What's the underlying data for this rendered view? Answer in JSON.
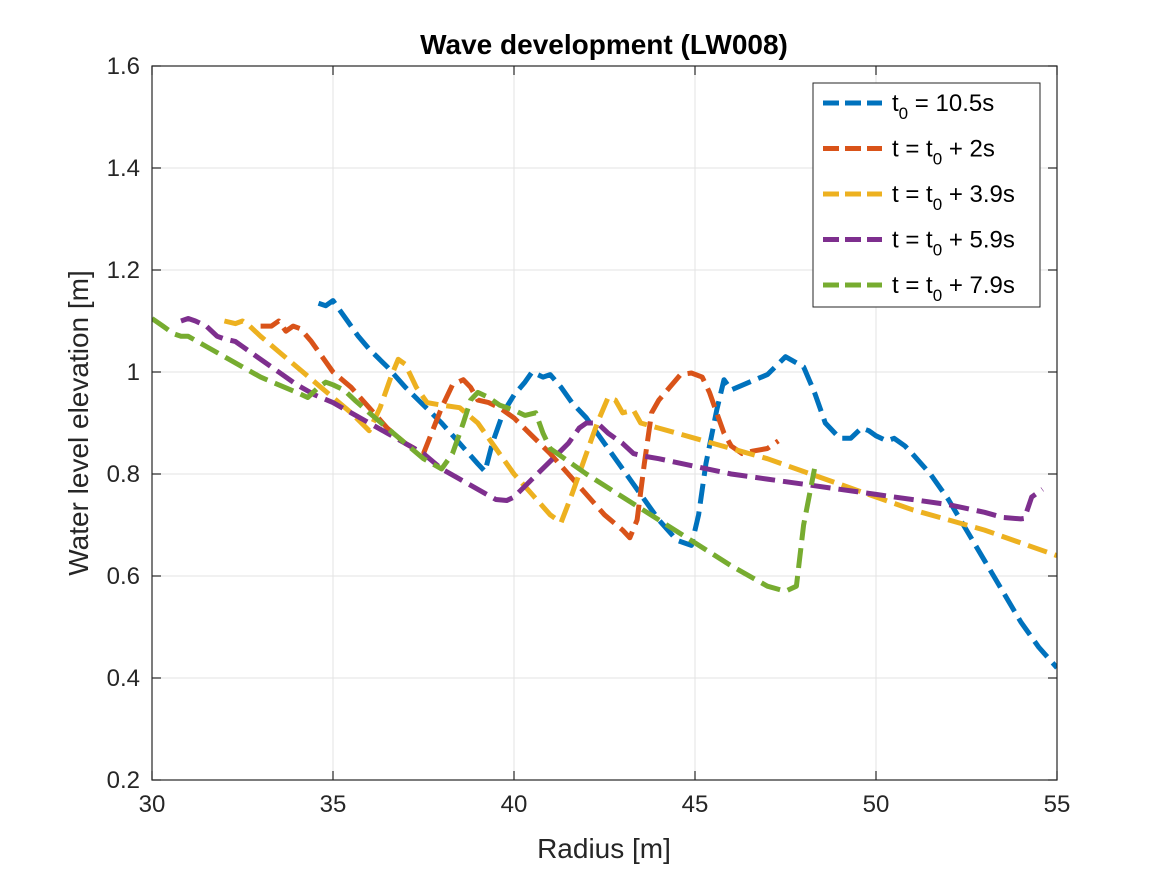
{
  "chart_data": {
    "type": "line",
    "title": "Wave development (LW008)",
    "xlabel": "Radius [m]",
    "ylabel": "Water level elevation [m]",
    "xlim": [
      30,
      55
    ],
    "ylim": [
      0.2,
      1.6
    ],
    "xticks": [
      30,
      35,
      40,
      45,
      50,
      55
    ],
    "yticks": [
      0.2,
      0.4,
      0.6,
      0.8,
      1.0,
      1.2,
      1.4,
      1.6
    ],
    "xtick_labels": [
      "30",
      "35",
      "40",
      "45",
      "50",
      "55"
    ],
    "ytick_labels": [
      "0.2",
      "0.4",
      "0.6",
      "0.8",
      "1",
      "1.2",
      "1.4",
      "1.6"
    ],
    "grid": true,
    "legend_position": "top-right",
    "series": [
      {
        "label_parts": [
          "t",
          "0",
          " = 10.5s"
        ],
        "color": "#0072BD",
        "x": [
          34.6,
          34.8,
          35.0,
          35.2,
          35.4,
          35.7,
          36.0,
          36.5,
          37.0,
          37.5,
          38.0,
          38.5,
          39.0,
          39.2,
          39.4,
          39.7,
          40.0,
          40.3,
          40.5,
          40.8,
          41.0,
          41.3,
          41.6,
          42.0,
          42.5,
          43.0,
          43.5,
          44.0,
          44.5,
          44.9,
          45.1,
          45.3,
          45.6,
          45.8,
          46.0,
          46.5,
          47.0,
          47.5,
          48.0,
          48.3,
          48.6,
          49.0,
          49.3,
          49.6,
          49.8,
          50.0,
          50.3,
          50.5,
          50.8,
          51.0,
          51.5,
          52.0,
          52.5,
          53.0,
          53.5,
          54.0,
          54.5,
          55.0
        ],
        "y": [
          1.135,
          1.13,
          1.14,
          1.12,
          1.1,
          1.07,
          1.045,
          1.01,
          0.97,
          0.935,
          0.9,
          0.86,
          0.82,
          0.805,
          0.86,
          0.92,
          0.955,
          0.98,
          1.0,
          0.99,
          0.995,
          0.97,
          0.94,
          0.91,
          0.86,
          0.81,
          0.76,
          0.71,
          0.67,
          0.66,
          0.72,
          0.82,
          0.925,
          0.985,
          0.965,
          0.98,
          0.995,
          1.03,
          1.01,
          0.96,
          0.9,
          0.87,
          0.87,
          0.89,
          0.885,
          0.875,
          0.865,
          0.87,
          0.855,
          0.84,
          0.8,
          0.75,
          0.69,
          0.63,
          0.57,
          0.51,
          0.46,
          0.42
        ]
      },
      {
        "label_parts": [
          "t = t",
          "0",
          " + 2s"
        ],
        "color": "#D95319",
        "x": [
          33.0,
          33.3,
          33.5,
          33.7,
          33.9,
          34.1,
          34.4,
          34.6,
          34.8,
          35.0,
          35.5,
          36.0,
          36.5,
          37.0,
          37.5,
          38.0,
          38.3,
          38.6,
          38.8,
          39.0,
          39.3,
          39.6,
          40.0,
          40.5,
          41.0,
          41.5,
          42.0,
          42.5,
          43.0,
          43.2,
          43.4,
          43.6,
          43.8,
          44.0,
          44.3,
          44.6,
          44.9,
          45.2,
          45.4,
          45.6,
          45.8,
          46.0,
          46.3,
          46.6,
          47.0,
          47.3
        ],
        "y": [
          1.09,
          1.09,
          1.1,
          1.08,
          1.09,
          1.085,
          1.06,
          1.04,
          1.02,
          1.0,
          0.97,
          0.93,
          0.89,
          0.86,
          0.84,
          0.93,
          0.975,
          0.985,
          0.97,
          0.945,
          0.94,
          0.93,
          0.91,
          0.875,
          0.84,
          0.8,
          0.76,
          0.72,
          0.69,
          0.675,
          0.71,
          0.82,
          0.92,
          0.945,
          0.97,
          0.995,
          0.998,
          0.99,
          0.96,
          0.92,
          0.88,
          0.855,
          0.84,
          0.845,
          0.85,
          0.865
        ]
      },
      {
        "label_parts": [
          "t = t",
          "0",
          " + 3.9s"
        ],
        "color": "#EDB120",
        "x": [
          32.0,
          32.3,
          32.5,
          32.7,
          33.0,
          33.5,
          34.0,
          34.5,
          35.0,
          35.5,
          36.0,
          36.3,
          36.6,
          36.8,
          37.0,
          37.3,
          37.6,
          38.0,
          38.5,
          39.0,
          39.5,
          40.0,
          40.5,
          41.0,
          41.3,
          41.6,
          42.0,
          42.3,
          42.6,
          42.8,
          43.0,
          43.3,
          43.5,
          44.0,
          45.0,
          46.0,
          47.0,
          48.0,
          49.0,
          50.0,
          51.0,
          52.0,
          53.0,
          54.0,
          55.0
        ],
        "y": [
          1.1,
          1.095,
          1.1,
          1.09,
          1.07,
          1.04,
          1.01,
          0.98,
          0.95,
          0.92,
          0.885,
          0.93,
          0.99,
          1.025,
          1.015,
          0.97,
          0.94,
          0.935,
          0.93,
          0.9,
          0.85,
          0.8,
          0.76,
          0.72,
          0.705,
          0.76,
          0.84,
          0.9,
          0.95,
          0.945,
          0.92,
          0.925,
          0.9,
          0.89,
          0.87,
          0.85,
          0.83,
          0.805,
          0.78,
          0.755,
          0.73,
          0.71,
          0.69,
          0.665,
          0.64
        ]
      },
      {
        "label_parts": [
          "t = t",
          "0",
          " + 5.9s"
        ],
        "color": "#7E2F8E",
        "x": [
          30.8,
          31.0,
          31.2,
          31.5,
          31.8,
          32.0,
          32.3,
          32.5,
          33.0,
          33.5,
          34.0,
          34.5,
          35.0,
          35.5,
          36.0,
          36.5,
          37.0,
          37.5,
          38.0,
          38.5,
          39.0,
          39.5,
          39.8,
          40.0,
          40.5,
          41.0,
          41.5,
          41.8,
          42.0,
          42.3,
          42.6,
          43.0,
          43.3,
          43.6,
          44.0,
          45.0,
          46.0,
          47.0,
          48.0,
          49.0,
          50.0,
          51.0,
          52.0,
          53.0,
          53.5,
          54.0,
          54.1,
          54.3,
          54.6
        ],
        "y": [
          1.1,
          1.105,
          1.1,
          1.09,
          1.07,
          1.065,
          1.06,
          1.05,
          1.025,
          1.0,
          0.975,
          0.955,
          0.94,
          0.92,
          0.9,
          0.88,
          0.86,
          0.84,
          0.81,
          0.79,
          0.77,
          0.75,
          0.748,
          0.755,
          0.79,
          0.825,
          0.86,
          0.89,
          0.9,
          0.9,
          0.88,
          0.86,
          0.84,
          0.835,
          0.83,
          0.815,
          0.8,
          0.79,
          0.78,
          0.77,
          0.76,
          0.75,
          0.74,
          0.725,
          0.715,
          0.712,
          0.713,
          0.755,
          0.77
        ]
      },
      {
        "label_parts": [
          "t = t",
          "0",
          " + 7.9s"
        ],
        "color": "#77AC30",
        "x": [
          30.0,
          30.3,
          30.6,
          30.8,
          31.0,
          31.5,
          32.0,
          32.5,
          33.0,
          33.5,
          34.0,
          34.3,
          34.6,
          34.8,
          35.0,
          35.3,
          35.6,
          36.0,
          36.5,
          37.0,
          37.5,
          38.0,
          38.3,
          38.6,
          38.8,
          39.0,
          39.3,
          39.6,
          40.0,
          40.3,
          40.6,
          40.8,
          41.0,
          42.0,
          43.0,
          44.0,
          45.0,
          46.0,
          47.0,
          47.5,
          47.8,
          48.0,
          48.3
        ],
        "y": [
          1.105,
          1.09,
          1.075,
          1.07,
          1.07,
          1.05,
          1.03,
          1.01,
          0.99,
          0.975,
          0.96,
          0.95,
          0.97,
          0.98,
          0.975,
          0.965,
          0.945,
          0.92,
          0.89,
          0.86,
          0.83,
          0.81,
          0.84,
          0.9,
          0.945,
          0.96,
          0.95,
          0.935,
          0.925,
          0.915,
          0.92,
          0.88,
          0.85,
          0.8,
          0.755,
          0.71,
          0.665,
          0.62,
          0.58,
          0.57,
          0.58,
          0.7,
          0.81
        ]
      }
    ]
  }
}
